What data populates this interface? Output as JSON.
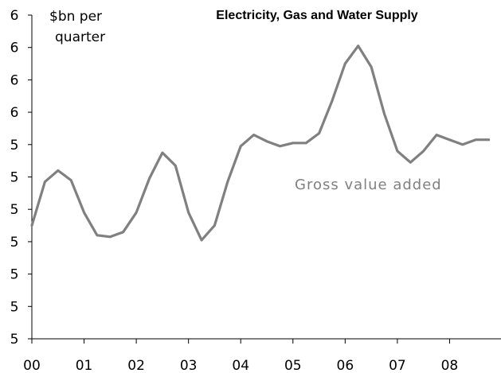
{
  "chart_data": {
    "type": "line",
    "title": "Electricity, Gas and Water Supply",
    "unit_label_line1": "$bn per",
    "unit_label_line2": "quarter",
    "y_tick_labels": [
      "6",
      "6",
      "6",
      "6",
      "5",
      "5",
      "5",
      "5",
      "5",
      "5",
      "5"
    ],
    "ylim": [
      4.3,
      6.3
    ],
    "x_tick_labels": [
      "00",
      "01",
      "02",
      "03",
      "04",
      "05",
      "06",
      "07",
      "08"
    ],
    "xlim": [
      2000.0,
      2009.0
    ],
    "grid": false,
    "series": [
      {
        "name": "Gross value added",
        "color": "#808080",
        "x": [
          2000.0,
          2000.25,
          2000.5,
          2000.75,
          2001.0,
          2001.25,
          2001.5,
          2001.75,
          2002.0,
          2002.25,
          2002.5,
          2002.75,
          2003.0,
          2003.25,
          2003.5,
          2003.75,
          2004.0,
          2004.25,
          2004.5,
          2004.75,
          2005.0,
          2005.25,
          2005.5,
          2005.75,
          2006.0,
          2006.25,
          2006.5,
          2006.75,
          2007.0,
          2007.25,
          2007.5,
          2007.75,
          2008.0,
          2008.25,
          2008.5,
          2008.75
        ],
        "values": [
          5.0,
          5.27,
          5.34,
          5.28,
          5.08,
          4.94,
          4.93,
          4.96,
          5.08,
          5.29,
          5.45,
          5.37,
          5.08,
          4.91,
          5.0,
          5.27,
          5.49,
          5.56,
          5.52,
          5.49,
          5.51,
          5.51,
          5.57,
          5.77,
          6.0,
          6.11,
          5.98,
          5.69,
          5.46,
          5.39,
          5.46,
          5.56,
          5.53,
          5.5,
          5.53,
          5.53
        ]
      }
    ]
  }
}
